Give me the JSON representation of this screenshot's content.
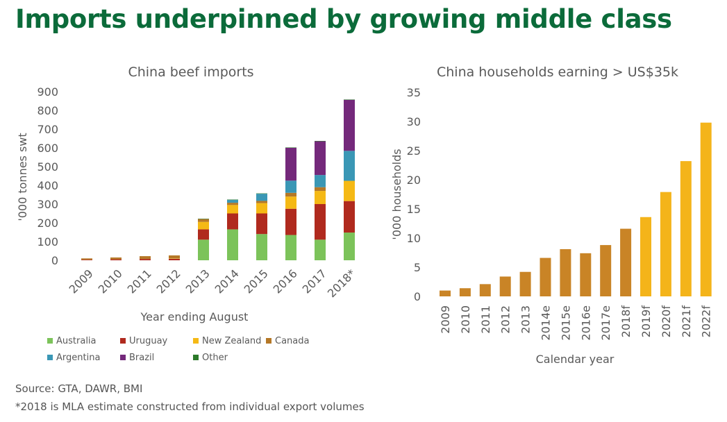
{
  "headline": "Imports underpinned by growing middle class",
  "source_line": "Source: GTA, DAWR, BMI",
  "footnote": "*2018 is MLA estimate constructed from individual export volumes",
  "chart_data": [
    {
      "type": "bar",
      "stacked": true,
      "title": "China beef imports",
      "xlabel": "Year ending August",
      "ylabel": "'000 tonnes swt",
      "ylim": [
        0,
        900
      ],
      "yticks": [
        0,
        100,
        200,
        300,
        400,
        500,
        600,
        700,
        800,
        900
      ],
      "grid": false,
      "legend_position": "bottom",
      "categories": [
        "2009",
        "2010",
        "2011",
        "2012",
        "2013",
        "2014",
        "2015",
        "2016",
        "2017",
        "2018*"
      ],
      "series": [
        {
          "name": "Australia",
          "color": "#7cc35a",
          "values": [
            0,
            0,
            0,
            0,
            110,
            165,
            140,
            135,
            110,
            148
          ]
        },
        {
          "name": "Uruguay",
          "color": "#b02a1e",
          "values": [
            3,
            5,
            7,
            8,
            55,
            85,
            110,
            140,
            190,
            168
          ]
        },
        {
          "name": "New Zealand",
          "color": "#f5b915",
          "values": [
            0,
            0,
            0,
            2,
            40,
            45,
            55,
            65,
            70,
            108
          ]
        },
        {
          "name": "Canada",
          "color": "#b57827",
          "values": [
            7,
            10,
            15,
            16,
            15,
            12,
            12,
            20,
            20,
            0
          ]
        },
        {
          "name": "Argentina",
          "color": "#3a97b5",
          "values": [
            0,
            0,
            0,
            0,
            0,
            15,
            38,
            65,
            65,
            160
          ]
        },
        {
          "name": "Brazil",
          "color": "#74297b",
          "values": [
            0,
            0,
            0,
            0,
            0,
            0,
            0,
            175,
            180,
            272
          ]
        },
        {
          "name": "Other",
          "color": "#2c7a2a",
          "values": [
            0,
            0,
            0,
            0,
            2,
            2,
            2,
            2,
            2,
            2
          ]
        }
      ]
    },
    {
      "type": "bar",
      "title": "China households earning > US$35k",
      "xlabel": "Calendar year",
      "ylabel": "'000 households",
      "ylim": [
        0,
        35
      ],
      "yticks": [
        0,
        5,
        10,
        15,
        20,
        25,
        30,
        35
      ],
      "grid": false,
      "categories": [
        "2009",
        "2010",
        "2011",
        "2012",
        "2013",
        "2014e",
        "2015e",
        "2016e",
        "2017e",
        "2018f",
        "2019f",
        "2020f",
        "2021f",
        "2022f"
      ],
      "values": [
        1.0,
        1.4,
        2.1,
        3.4,
        4.2,
        6.6,
        8.1,
        7.4,
        8.8,
        11.6,
        13.6,
        17.9,
        23.2,
        29.8
      ],
      "colors": {
        "actual": "#c98426",
        "forecast": "#f4b41a"
      },
      "forecast_from": "2019f"
    }
  ]
}
